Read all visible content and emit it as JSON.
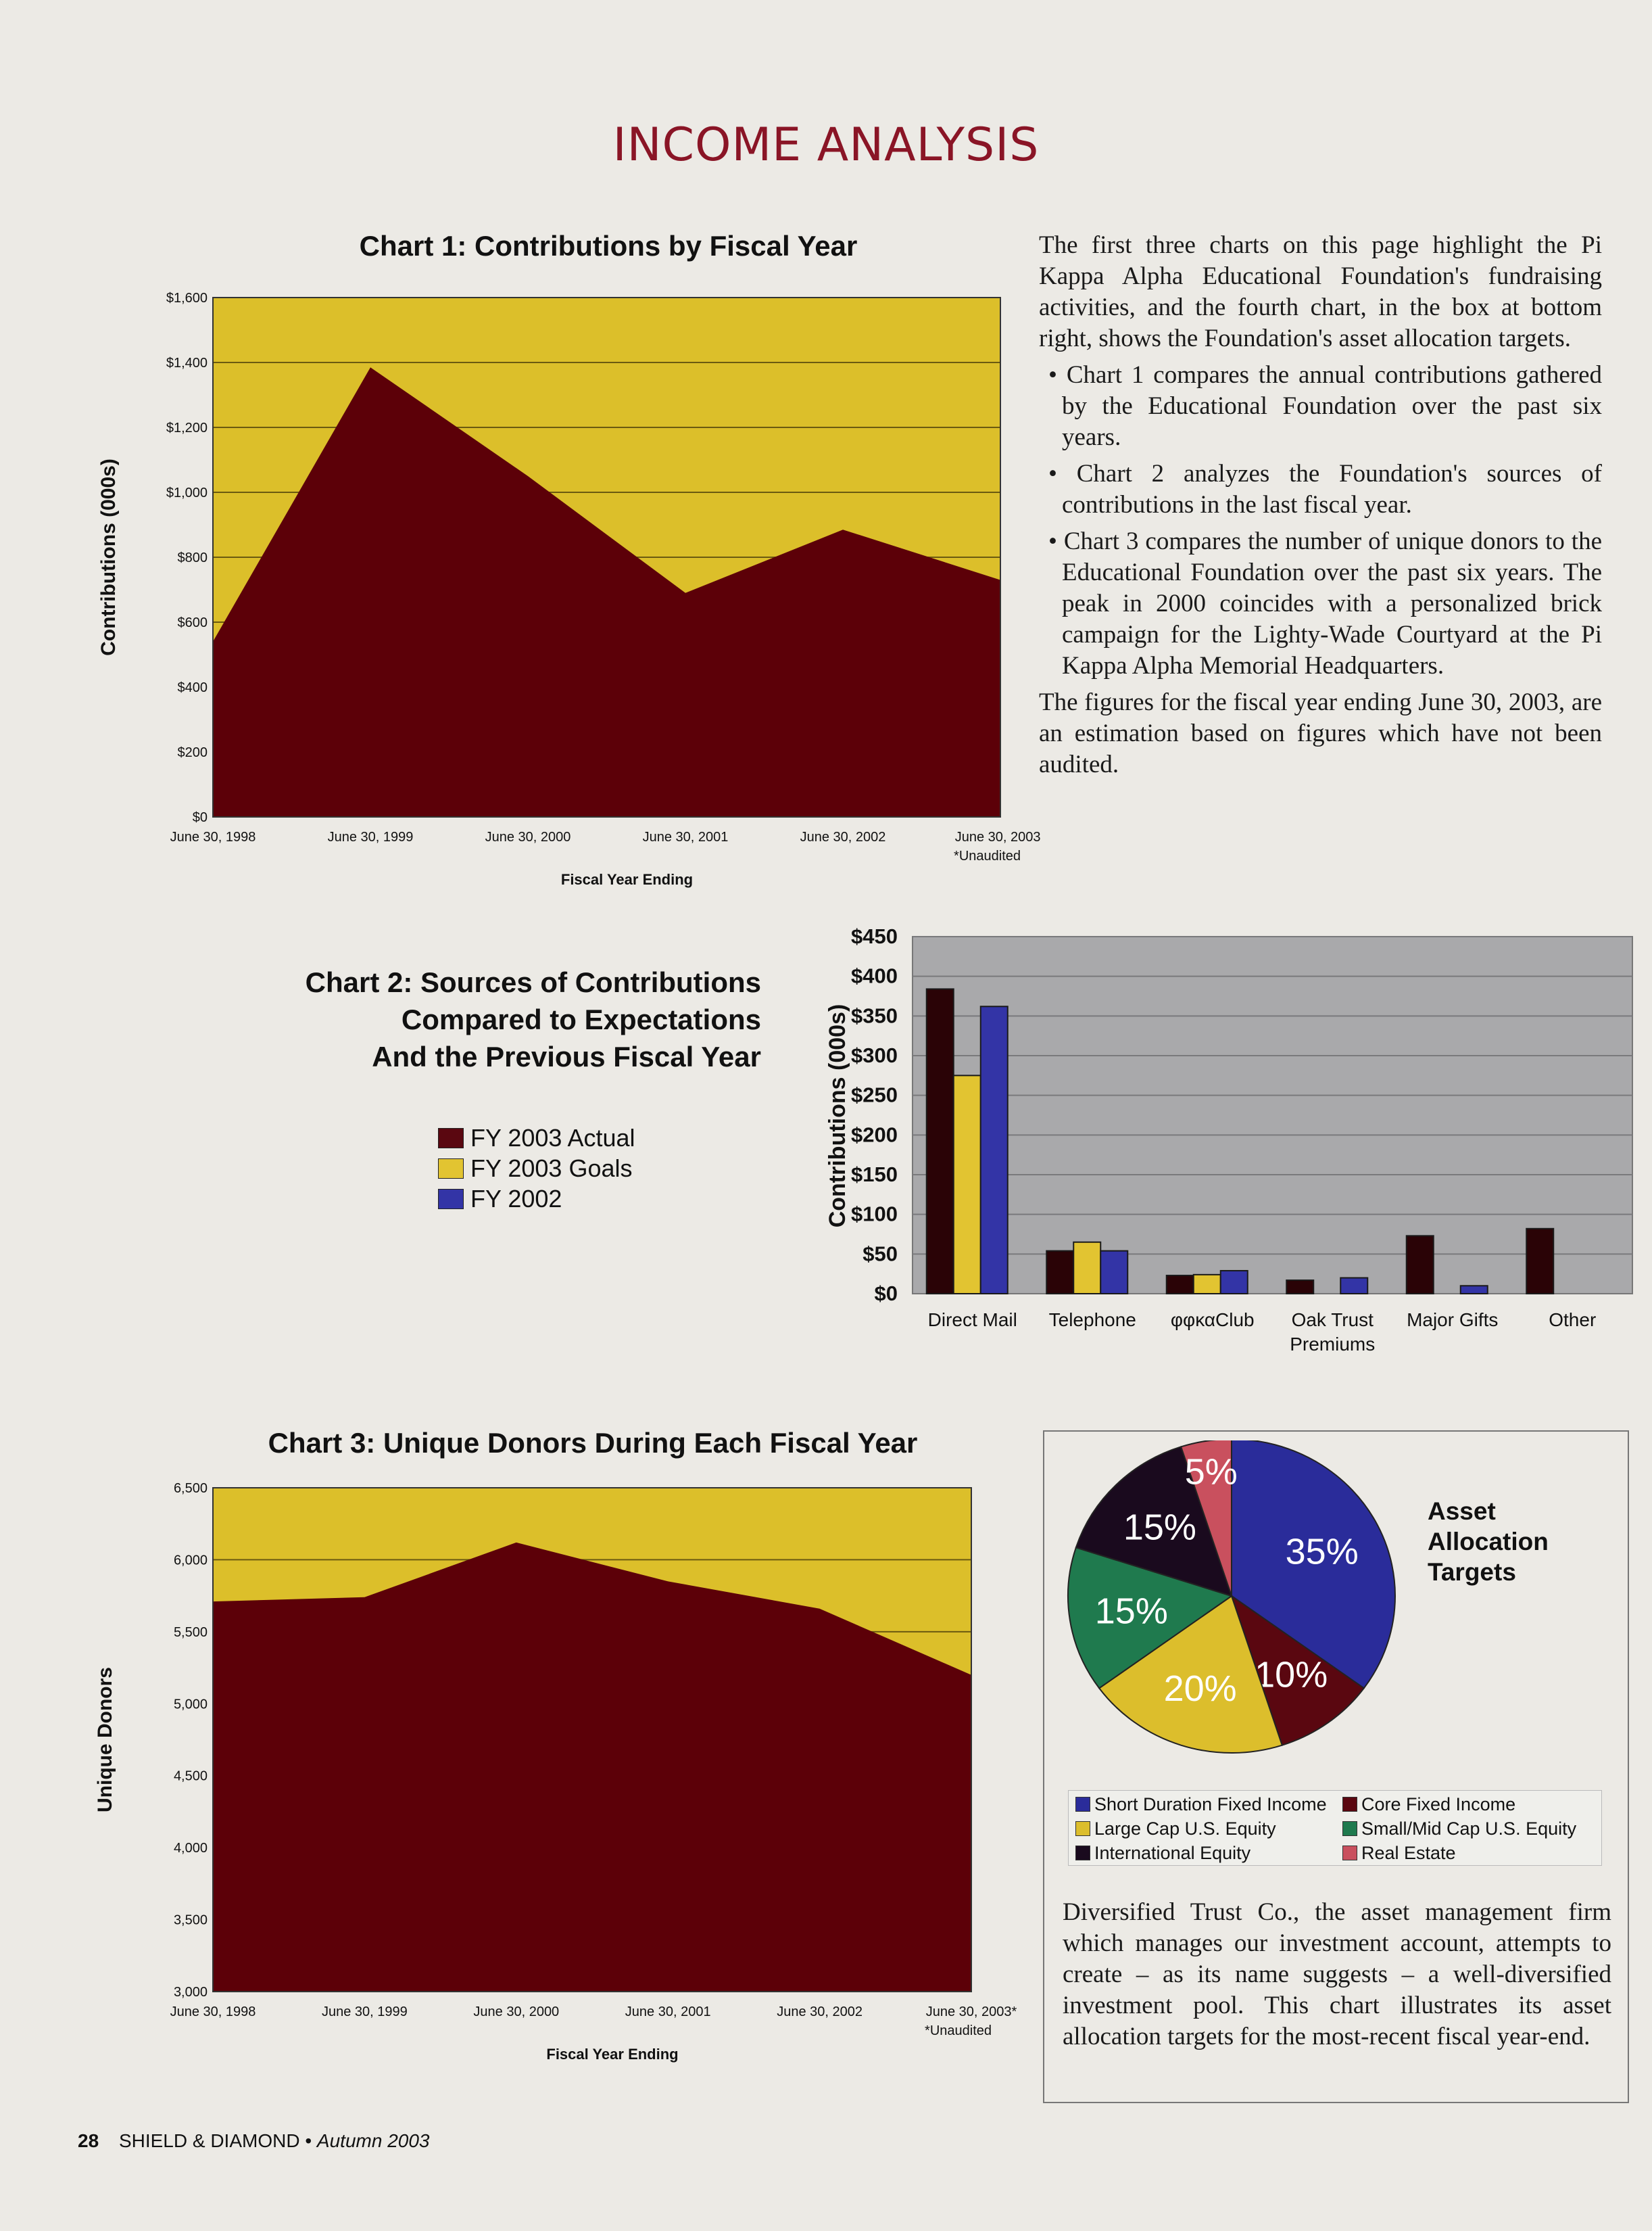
{
  "page_title": "INCOME ANALYSIS",
  "intro": {
    "para1": "The first three charts on this page highlight the Pi Kappa Alpha Educational Foundation's fundraising activities, and the fourth chart, in the box at bottom right, shows the Foundation's asset allocation targets.",
    "bullets": [
      "• Chart 1 compares the annual contributions gathered by the Educational Foundation over the past six years.",
      "• Chart 2 analyzes the Foundation's sources of contributions in the last fiscal year.",
      "• Chart 3 compares the number of unique donors to the Educational Foundation over the past six years. The peak in 2000 coincides with a personalized brick campaign for the Lighty-Wade Courtyard at the Pi Kappa Alpha Memorial Headquarters."
    ],
    "para2": "The figures for the fiscal year ending June 30, 2003, are an estimation based on figures which have not been audited."
  },
  "alloc_box": {
    "title_lines": [
      "Asset",
      "Allocation",
      "Targets"
    ],
    "text": "Diversified Trust Co., the asset management firm which manages our investment account, attempts to create – as its name suggests – a well-diversified investment pool. This chart illustrates its asset allocation targets for the most-recent fiscal year-end."
  },
  "footer": {
    "page_number": "28",
    "publication": "SHIELD & DIAMOND",
    "issue": "Autumn 2003"
  },
  "colors": {
    "maroon": "#5c0008",
    "gold": "#dcbf2a",
    "blue": "#2d2f9c",
    "plot_gray": "#a9a9ab"
  },
  "chart_data": [
    {
      "type": "area",
      "title": "Chart 1: Contributions by Fiscal Year",
      "xlabel": "Fiscal Year Ending",
      "ylabel": "Contributions (000s)",
      "categories": [
        "June 30, 1998",
        "June 30, 1999",
        "June 30, 2000",
        "June 30, 2001",
        "June 30, 2002",
        "June 30, 2003*"
      ],
      "note": "*Unaudited",
      "values": [
        540,
        1385,
        1050,
        690,
        885,
        730
      ],
      "ylim": [
        0,
        1600
      ],
      "yticks": [
        "$0",
        "$200",
        "$400",
        "$600",
        "$800",
        "$1,000",
        "$1,200",
        "$1,400",
        "$1,600"
      ],
      "grid": true
    },
    {
      "type": "bar",
      "title_lines": [
        "Chart 2: Sources of Contributions",
        "Compared to Expectations",
        "And the Previous Fiscal Year"
      ],
      "ylabel": "Contributions (000s)",
      "categories": [
        "Direct Mail",
        "Telephone",
        "φφκα Club",
        "Oak Trust Premiums",
        "Major Gifts",
        "Other"
      ],
      "category_lines": [
        [
          "Direct Mail"
        ],
        [
          "Telephone"
        ],
        [
          "φφκαClub"
        ],
        [
          "Oak Trust",
          "Premiums"
        ],
        [
          "Major Gifts"
        ],
        [
          "Other"
        ]
      ],
      "series": [
        {
          "name": "FY 2003 Actual",
          "color": "#2a0306",
          "values": [
            384,
            54,
            23,
            17,
            73,
            82
          ]
        },
        {
          "name": "FY 2003 Goals",
          "color": "#e2c431",
          "values": [
            275,
            65,
            24,
            null,
            null,
            null
          ]
        },
        {
          "name": "FY 2002",
          "color": "#3334a6",
          "values": [
            362,
            54,
            29,
            20,
            10,
            null
          ]
        }
      ],
      "ylim": [
        0,
        450
      ],
      "yticks": [
        "$0",
        "$50",
        "$100",
        "$150",
        "$200",
        "$250",
        "$300",
        "$350",
        "$400",
        "$450"
      ],
      "legend": "left",
      "grid": true
    },
    {
      "type": "area",
      "title": "Chart 3: Unique Donors During Each Fiscal Year",
      "xlabel": "Fiscal Year Ending",
      "ylabel": "Unique Donors",
      "categories": [
        "June 30, 1998",
        "June 30, 1999",
        "June 30, 2000",
        "June 30, 2001",
        "June 30, 2002",
        "June 30, 2003*"
      ],
      "note": "*Unaudited",
      "values": [
        5710,
        5740,
        6120,
        5850,
        5660,
        5200
      ],
      "ylim": [
        3000,
        6500
      ],
      "yticks": [
        "3,000",
        "3,500",
        "4,000",
        "4,500",
        "5,000",
        "5,500",
        "6,000",
        "6,500"
      ],
      "grid": true
    },
    {
      "type": "pie",
      "slices": [
        {
          "name": "Short Duration Fixed Income",
          "value": 35,
          "label": "35%",
          "color": "#2a2c9a"
        },
        {
          "name": "Core Fixed Income",
          "value": 10,
          "label": "10%",
          "color": "#5a0710"
        },
        {
          "name": "Large Cap U.S. Equity",
          "value": 20,
          "label": "20%",
          "color": "#dcbe2c"
        },
        {
          "name": "Small/Mid Cap U.S. Equity",
          "value": 15,
          "label": "15%",
          "color": "#1f7a4e"
        },
        {
          "name": "International Equity",
          "value": 15,
          "label": "15%",
          "color": "#1a0a1e"
        },
        {
          "name": "Real Estate",
          "value": 5,
          "label": "5%",
          "color": "#c9505e"
        }
      ],
      "legend_order": [
        0,
        1,
        2,
        3,
        4,
        5
      ],
      "legend": "bottom"
    }
  ]
}
